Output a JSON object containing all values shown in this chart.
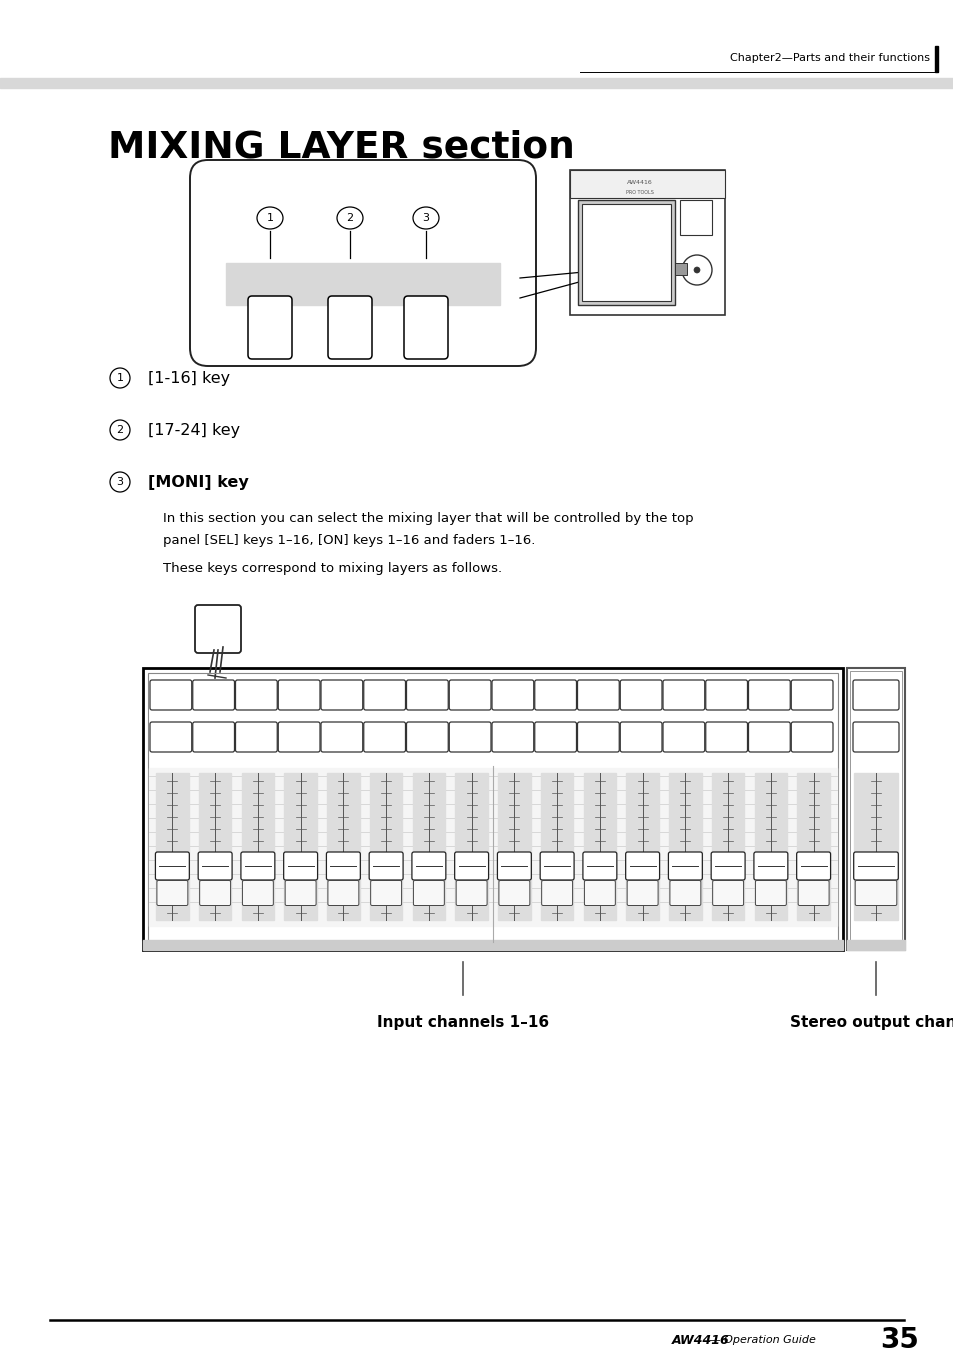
{
  "title": "MIXING LAYER section",
  "header_text": "Chapter2—Parts and their functions",
  "footer_brand": "AW4416",
  "footer_guide": " — Operation Guide",
  "page_number": "35",
  "item1_label": "[1-16] key",
  "item2_label": "[17-24] key",
  "item3_label": "[MONI] key",
  "body_text1": "In this section you can select the mixing layer that will be controlled by the top",
  "body_text2": "panel [SEL] keys 1–16, [ON] keys 1–16 and faders 1–16.",
  "body_text3": "These keys correspond to mixing layers as follows.",
  "label_input": "Input channels 1–16",
  "label_stereo": "Stereo output channel",
  "bg": "#ffffff",
  "gray_light": "#d8d8d8",
  "gray_med": "#aaaaaa",
  "gray_dark": "#888888",
  "black": "#000000"
}
